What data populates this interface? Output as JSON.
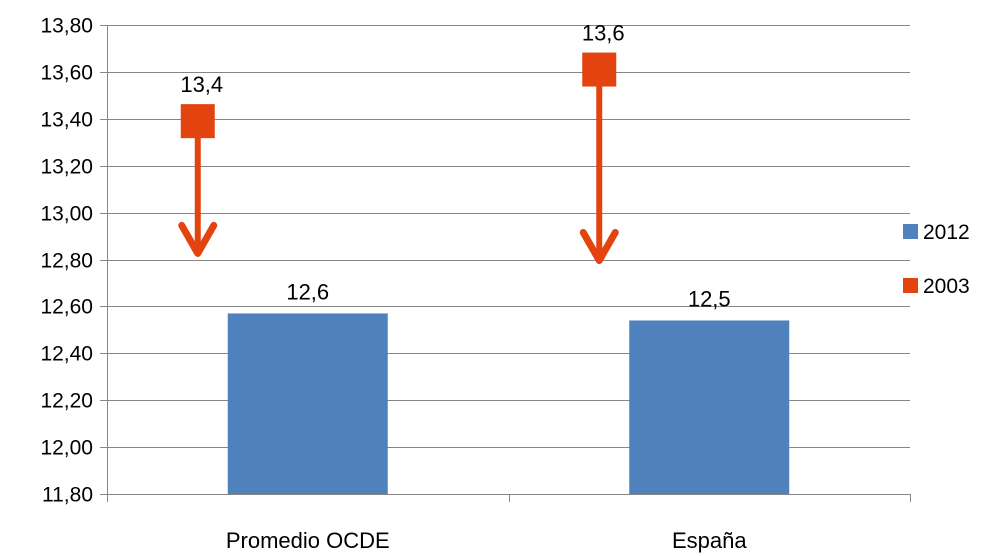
{
  "chart_data": {
    "type": "bar",
    "title": "",
    "xlabel": "",
    "ylabel": "",
    "categories": [
      "Promedio OCDE",
      "España"
    ],
    "ylim": [
      11.8,
      13.8
    ],
    "ytick_step": 0.2,
    "yticks": [
      "11,80",
      "12,00",
      "12,20",
      "12,40",
      "12,60",
      "12,80",
      "13,00",
      "13,20",
      "13,40",
      "13,60",
      "13,80"
    ],
    "grid": true,
    "legend_position": "right",
    "series": [
      {
        "name": "2012",
        "kind": "bar",
        "color": "#4F81BD",
        "values": [
          12.57,
          12.54
        ],
        "labels": [
          "12,6",
          "12,5"
        ]
      },
      {
        "name": "2003",
        "kind": "marker",
        "marker": "square",
        "color": "#E2430F",
        "values": [
          13.39,
          13.61
        ],
        "labels": [
          "13,4",
          "13,6"
        ]
      }
    ],
    "annotations": [
      {
        "type": "arrow",
        "from_series": "2003",
        "to_series": "2012",
        "color": "#E2430F"
      }
    ]
  }
}
